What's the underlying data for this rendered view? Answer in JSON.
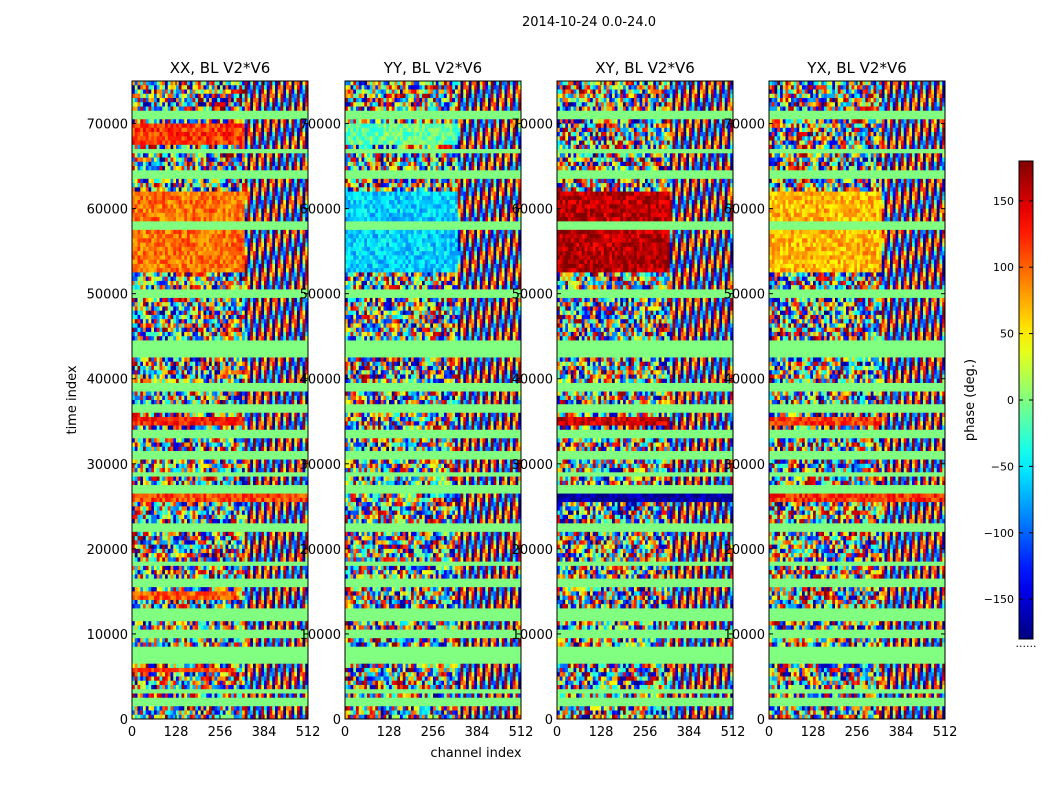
{
  "chart_data": {
    "type": "heatmap",
    "title": "2014-10-24 0.0-24.0",
    "xlabel": "channel index",
    "ylabel": "time index",
    "x_range": [
      0,
      512
    ],
    "y_range": [
      0,
      75000
    ],
    "xticks": [
      0,
      128,
      256,
      384,
      512
    ],
    "xtick_labels": [
      "0",
      "128",
      "256",
      "384",
      "512"
    ],
    "yticks": [
      0,
      10000,
      20000,
      30000,
      40000,
      50000,
      60000,
      70000
    ],
    "ytick_labels": [
      "0",
      "10000",
      "20000",
      "30000",
      "40000",
      "50000",
      "60000",
      "70000"
    ],
    "panels": [
      {
        "name": "XX",
        "title": "XX, BL V2*V6",
        "phase_bands": [
          {
            "y0": 52500,
            "y1": 62000,
            "x1": 330,
            "phase": 95
          },
          {
            "y0": 67500,
            "y1": 70000,
            "x1": 330,
            "phase": 115
          },
          {
            "y0": 34500,
            "y1": 35500,
            "x1": 330,
            "phase": 125
          },
          {
            "y0": 25500,
            "y1": 26500,
            "x1": 512,
            "phase": 110
          },
          {
            "y0": 14000,
            "y1": 15000,
            "x1": 300,
            "phase": 105
          },
          {
            "y0": 5500,
            "y1": 6000,
            "x1": 300,
            "phase": 110
          }
        ]
      },
      {
        "name": "YY",
        "title": "YY, BL V2*V6",
        "phase_bands": [
          {
            "y0": 52500,
            "y1": 62000,
            "x1": 330,
            "phase": -60
          },
          {
            "y0": 67500,
            "y1": 70000,
            "x1": 330,
            "phase": -10
          }
        ]
      },
      {
        "name": "XY",
        "title": "XY, BL V2*V6",
        "phase_bands": [
          {
            "y0": 52500,
            "y1": 62000,
            "x1": 330,
            "phase": 160
          },
          {
            "y0": 25500,
            "y1": 26500,
            "x1": 512,
            "phase": -170
          },
          {
            "y0": 34500,
            "y1": 35500,
            "x1": 330,
            "phase": 150
          }
        ]
      },
      {
        "name": "YX",
        "title": "YX, BL V2*V6",
        "phase_bands": [
          {
            "y0": 52500,
            "y1": 62000,
            "x1": 330,
            "phase": 70
          },
          {
            "y0": 25500,
            "y1": 26500,
            "x1": 512,
            "phase": 120
          },
          {
            "y0": 34500,
            "y1": 35500,
            "x1": 330,
            "phase": 115
          }
        ]
      }
    ],
    "flag_bands_time": [
      [
        1500,
        2500
      ],
      [
        3000,
        3600
      ],
      [
        6500,
        8500
      ],
      [
        9500,
        10500
      ],
      [
        11500,
        13000
      ],
      [
        15500,
        16500
      ],
      [
        18000,
        18500
      ],
      [
        22000,
        23000
      ],
      [
        26500,
        27500
      ],
      [
        28500,
        29000
      ],
      [
        30500,
        31500
      ],
      [
        33000,
        34000
      ],
      [
        36000,
        37000
      ],
      [
        38500,
        39500
      ],
      [
        42500,
        44500
      ],
      [
        49500,
        50500
      ],
      [
        57500,
        58500
      ],
      [
        63500,
        64500
      ],
      [
        66500,
        67000
      ],
      [
        70500,
        71500
      ]
    ],
    "fringe_region": {
      "x0": 330,
      "x1": 512
    },
    "colorbar": {
      "label": "phase (deg.)",
      "range": [
        -180,
        180
      ],
      "ticks": [
        150,
        100,
        50,
        0,
        -50,
        -100,
        -150
      ],
      "tick_labels": [
        "150",
        "100",
        "50",
        "0",
        "−50",
        "−100",
        "−150"
      ],
      "colormap": "jet",
      "footer_text": "......"
    }
  }
}
